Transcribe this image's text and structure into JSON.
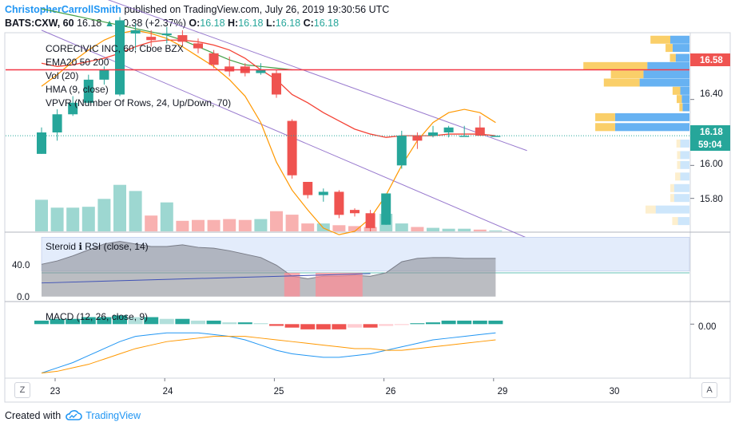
{
  "header": {
    "author": "ChristopherCarrollSmith",
    "published_text": "published on TradingView.com, July 26, 2019 19:30:56 UTC",
    "symbol": "BATS:CXW, 60",
    "price": "16.18",
    "change": "+0.38 (+2.37%)",
    "o_label": "O:",
    "o_value": "16.18",
    "h_label": "H:",
    "h_value": "16.18",
    "l_label": "L:",
    "l_value": "16.18",
    "c_label": "C:",
    "c_value": "16.18"
  },
  "footer": {
    "created_with": "Created with",
    "brand": "TradingView"
  },
  "buttons": {
    "zoom": "Z",
    "auto": "A"
  },
  "colors": {
    "up": "#26a69a",
    "down": "#ef5350",
    "ema20": "#f44336",
    "ema50": "#7e57c2",
    "ema200": "#43a047",
    "hma": "#ff9800",
    "macd": "#2196f3",
    "signal": "#ff9800",
    "vp_up": "#4ca5f0",
    "vp_down": "#f9c74f"
  },
  "chart_data": [
    {
      "type": "candlestick",
      "title": "CORECIVIC INC, 60, Cboe BZX",
      "legend": [
        "EMA20 50 200",
        "Vol (20)",
        "HMA (9, close)",
        "VPVR (Number Of Rows, 24, Up/Down, 70)"
      ],
      "ylim": [
        15.6,
        16.8
      ],
      "yticks": [
        "16.40",
        "16.00",
        "15.80"
      ],
      "x_ticks": [
        "23",
        "24",
        "25",
        "26",
        "29",
        "30"
      ],
      "candles": [
        {
          "o": 16.07,
          "h": 16.23,
          "l": 16.07,
          "c": 16.2
        },
        {
          "o": 16.2,
          "h": 16.34,
          "l": 16.15,
          "c": 16.31
        },
        {
          "o": 16.31,
          "h": 16.42,
          "l": 16.3,
          "c": 16.38
        },
        {
          "o": 16.38,
          "h": 16.55,
          "l": 16.36,
          "c": 16.52
        },
        {
          "o": 16.52,
          "h": 16.6,
          "l": 16.49,
          "c": 16.58
        },
        {
          "o": 16.43,
          "h": 16.9,
          "l": 16.42,
          "c": 16.88
        },
        {
          "o": 16.8,
          "h": 16.86,
          "l": 16.7,
          "c": 16.82
        },
        {
          "o": 16.78,
          "h": 16.82,
          "l": 16.72,
          "c": 16.76
        },
        {
          "o": 16.79,
          "h": 16.84,
          "l": 16.74,
          "c": 16.8
        },
        {
          "o": 16.79,
          "h": 16.82,
          "l": 16.73,
          "c": 16.75
        },
        {
          "o": 16.74,
          "h": 16.77,
          "l": 16.68,
          "c": 16.71
        },
        {
          "o": 16.68,
          "h": 16.7,
          "l": 16.59,
          "c": 16.61
        },
        {
          "o": 16.6,
          "h": 16.66,
          "l": 16.54,
          "c": 16.57
        },
        {
          "o": 16.6,
          "h": 16.62,
          "l": 16.54,
          "c": 16.56
        },
        {
          "o": 16.56,
          "h": 16.62,
          "l": 16.55,
          "c": 16.58
        },
        {
          "o": 16.56,
          "h": 16.58,
          "l": 16.41,
          "c": 16.43
        },
        {
          "o": 16.27,
          "h": 16.28,
          "l": 15.92,
          "c": 15.94
        },
        {
          "o": 15.9,
          "h": 15.9,
          "l": 15.8,
          "c": 15.82
        },
        {
          "o": 15.82,
          "h": 15.86,
          "l": 15.78,
          "c": 15.84
        },
        {
          "o": 15.84,
          "h": 15.85,
          "l": 15.68,
          "c": 15.7
        },
        {
          "o": 15.73,
          "h": 15.74,
          "l": 15.69,
          "c": 15.71
        },
        {
          "o": 15.71,
          "h": 15.73,
          "l": 15.6,
          "c": 15.62
        },
        {
          "o": 15.64,
          "h": 15.83,
          "l": 15.64,
          "c": 15.83
        },
        {
          "o": 16.0,
          "h": 16.21,
          "l": 15.98,
          "c": 16.18
        },
        {
          "o": 16.18,
          "h": 16.2,
          "l": 16.1,
          "c": 16.15
        },
        {
          "o": 16.18,
          "h": 16.24,
          "l": 16.17,
          "c": 16.2
        },
        {
          "o": 16.2,
          "h": 16.24,
          "l": 16.17,
          "c": 16.23
        },
        {
          "o": 16.18,
          "h": 16.24,
          "l": 16.18,
          "c": 16.18
        },
        {
          "o": 16.23,
          "h": 16.3,
          "l": 16.18,
          "c": 16.18
        },
        {
          "o": 16.18,
          "h": 16.18,
          "l": 16.18,
          "c": 16.18
        }
      ],
      "volume": [
        0.36,
        0.27,
        0.27,
        0.28,
        0.37,
        0.53,
        0.46,
        0.18,
        0.33,
        0.12,
        0.13,
        0.13,
        0.14,
        0.13,
        0.14,
        0.23,
        0.19,
        0.09,
        0.09,
        0.07,
        0.06,
        0.05,
        0.2,
        0.09,
        0.05,
        0.04,
        0.03,
        0.03,
        0.02,
        0.01
      ],
      "ema20": [
        16.62,
        16.6,
        16.61,
        16.63,
        16.65,
        16.68,
        16.72,
        16.75,
        16.76,
        16.76,
        16.75,
        16.73,
        16.7,
        16.65,
        16.58,
        16.52,
        16.43,
        16.38,
        16.32,
        16.27,
        16.22,
        16.19,
        16.17,
        16.18,
        16.18,
        16.18,
        16.19,
        16.19,
        16.19,
        16.18
      ],
      "ema200": [
        16.95,
        16.93,
        16.91,
        16.89,
        16.87,
        16.85,
        16.83,
        16.81,
        16.79,
        16.76,
        16.72,
        16.68,
        16.64,
        16.61,
        16.6,
        16.59,
        16.58
      ],
      "hma": [
        16.48,
        16.55,
        16.63,
        16.7,
        16.76,
        16.8,
        16.82,
        16.8,
        16.77,
        16.72,
        16.66,
        16.6,
        16.52,
        16.42,
        16.26,
        16.02,
        15.85,
        15.73,
        15.62,
        15.58,
        15.6,
        15.68,
        15.82,
        16.0,
        16.15,
        16.26,
        16.32,
        16.34,
        16.32,
        16.26
      ],
      "channel_upper": [
        {
          "x": 0,
          "y": 17.15
        },
        {
          "x": 31,
          "y": 16.09
        }
      ],
      "channel_lower": [
        {
          "x": 0,
          "y": 16.82
        },
        {
          "x": 31,
          "y": 15.56
        }
      ],
      "horizontal_lines": [
        {
          "name": "resistance",
          "y": 16.58,
          "label": "16.58"
        },
        {
          "name": "current",
          "y": 16.18,
          "label": "16.18"
        }
      ],
      "countdown_label": "59:04",
      "vpvr": [
        {
          "y": 16.76,
          "up": 0.25,
          "down": 0.31
        },
        {
          "y": 16.71,
          "up": 0.22,
          "down": 0.11
        },
        {
          "y": 16.65,
          "up": 0.18,
          "down": 0.09
        },
        {
          "y": 16.6,
          "up": 0.55,
          "down": 1.0
        },
        {
          "y": 16.55,
          "up": 0.6,
          "down": 0.51
        },
        {
          "y": 16.5,
          "up": 0.65,
          "down": 0.56
        },
        {
          "y": 16.45,
          "up": 0.12,
          "down": 0.12
        },
        {
          "y": 16.4,
          "up": 0.1,
          "down": 0.08
        },
        {
          "y": 16.35,
          "up": 0.09,
          "down": 0.05
        },
        {
          "y": 16.29,
          "up": 0.97,
          "down": 0.31
        },
        {
          "y": 16.23,
          "up": 0.97,
          "down": 0.31
        },
        {
          "y": 16.13,
          "up": 0.12,
          "down": 0.06
        },
        {
          "y": 16.06,
          "up": 0.12,
          "down": 0.05
        },
        {
          "y": 16.0,
          "up": 0.12,
          "down": 0.05
        },
        {
          "y": 15.93,
          "up": 0.12,
          "down": 0.08
        },
        {
          "y": 15.86,
          "up": 0.2,
          "down": 0.06
        },
        {
          "y": 15.8,
          "up": 0.2,
          "down": 0.06
        },
        {
          "y": 15.73,
          "up": 0.44,
          "down": 0.16
        },
        {
          "y": 15.66,
          "up": 0.15,
          "down": 0.09
        }
      ]
    },
    {
      "type": "area",
      "title": "Steroid ℹ RSI (close, 14)",
      "ylim": [
        -5,
        75
      ],
      "yticks": [
        "40.0",
        "0.0"
      ],
      "rsi": [
        38,
        42,
        48,
        55,
        62,
        65,
        62,
        59,
        59,
        61,
        58,
        57,
        54,
        50,
        46,
        37,
        24,
        21,
        24,
        24,
        25,
        24,
        28,
        41,
        45,
        46,
        46,
        45,
        45,
        45
      ],
      "reference_level": 28,
      "trendline": [
        {
          "x": 0,
          "y": 16
        },
        {
          "x": 21,
          "y": 27
        }
      ],
      "shaded_ranges": [
        {
          "from": 15.5,
          "to": 16.5
        },
        {
          "from": 17.5,
          "to": 20.5
        }
      ]
    },
    {
      "type": "bar",
      "title": "MACD (12, 26, close, 9)",
      "ylim": [
        -0.3,
        0.12
      ],
      "yticks": [
        "0.00"
      ],
      "histogram": [
        0.02,
        0.03,
        0.03,
        0.04,
        0.04,
        0.05,
        0.04,
        0.04,
        0.03,
        0.03,
        0.02,
        0.02,
        0.01,
        0.01,
        0.005,
        -0.01,
        -0.02,
        -0.03,
        -0.03,
        -0.03,
        -0.02,
        -0.02,
        -0.01,
        -0.005,
        0.005,
        0.01,
        0.02,
        0.02,
        0.02,
        0.02
      ],
      "macd": [
        -0.28,
        -0.25,
        -0.22,
        -0.18,
        -0.14,
        -0.1,
        -0.07,
        -0.06,
        -0.05,
        -0.05,
        -0.05,
        -0.06,
        -0.07,
        -0.09,
        -0.12,
        -0.15,
        -0.17,
        -0.18,
        -0.19,
        -0.19,
        -0.18,
        -0.17,
        -0.15,
        -0.13,
        -0.11,
        -0.09,
        -0.08,
        -0.07,
        -0.06,
        -0.05
      ],
      "signal": [
        -0.28,
        -0.27,
        -0.25,
        -0.23,
        -0.2,
        -0.17,
        -0.14,
        -0.12,
        -0.1,
        -0.09,
        -0.08,
        -0.07,
        -0.07,
        -0.07,
        -0.08,
        -0.09,
        -0.1,
        -0.11,
        -0.12,
        -0.13,
        -0.14,
        -0.14,
        -0.15,
        -0.15,
        -0.14,
        -0.13,
        -0.12,
        -0.11,
        -0.1,
        -0.09
      ]
    }
  ]
}
